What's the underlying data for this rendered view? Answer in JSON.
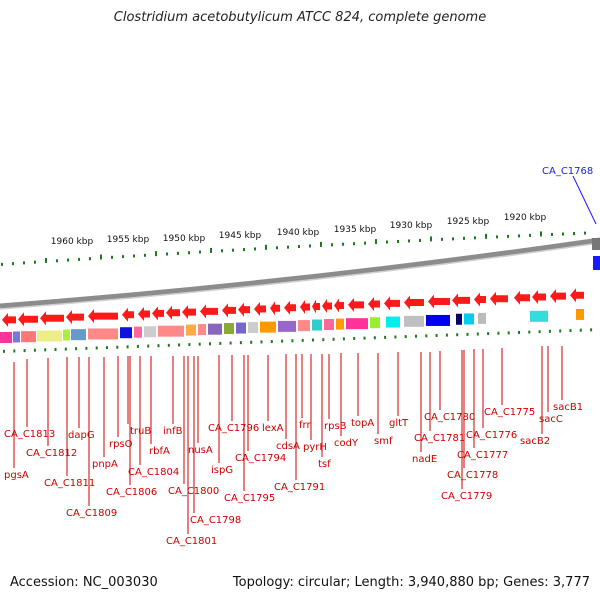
{
  "title": "Clostridium acetobutylicum ATCC 824, complete genome",
  "footer": {
    "accession": "Accession: NC_003030",
    "summary": "Topology: circular; Length: 3,940,880 bp; Genes: 3,777"
  },
  "colors": {
    "gene_label": "#cc0000",
    "highlight_label": "#1a1aff",
    "tick": "#1f7a1f",
    "backbone": "#8c8c8c",
    "arrow": "#ff1a1a"
  },
  "ticks": [
    "1960 kbp",
    "1955 kbp",
    "1950 kbp",
    "1945 kbp",
    "1940 kbp",
    "1935 kbp",
    "1930 kbp",
    "1925 kbp",
    "1920 kbp"
  ],
  "highlight": {
    "label": "CA_C1768"
  },
  "genes": [
    "pgsA",
    "CA_C1813",
    "CA_C1812",
    "CA_C1811",
    "dapG",
    "CA_C1809",
    "pnpA",
    "rpsO",
    "truB",
    "CA_C1806",
    "rbfA",
    "CA_C1804",
    "infB",
    "CA_C1801",
    "CA_C1800",
    "CA_C1798",
    "nusA",
    "ispG",
    "CA_C1796",
    "CA_C1795",
    "CA_C1794",
    "lexA",
    "cdsA",
    "CA_C1791",
    "frr",
    "pyrH",
    "tsf",
    "rpsB",
    "codY",
    "topA",
    "smf",
    "gltT",
    "nadE",
    "CA_C1781",
    "CA_C1780",
    "CA_C1779",
    "CA_C1778",
    "CA_C1777",
    "CA_C1776",
    "CA_C1775",
    "sacB2",
    "sacC",
    "sacB1"
  ]
}
